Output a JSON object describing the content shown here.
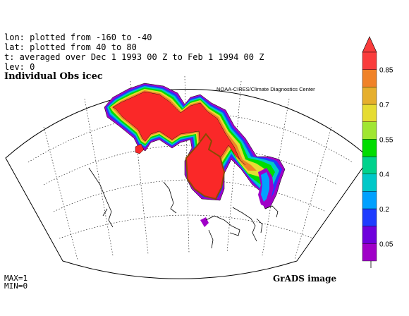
{
  "header": {
    "lon_line": "lon: plotted from -160 to -40",
    "lat_line": "lat: plotted from 40 to 80",
    "time_line": "t: averaged over Dec 1 1993 00 Z to Feb 1 1994 00 Z",
    "lev_line": "lev: 0"
  },
  "title": "Individual Obs icec",
  "credit": "NOAA-CIRES/Climate Diagnostics Center",
  "footer": {
    "max_label": "MAX=1",
    "min_label": "MIN=0",
    "grads_label": "GrADS image"
  },
  "colorbar": {
    "labels": [
      "0.05",
      "0.2",
      "0.4",
      "0.55",
      "0.7",
      "0.85"
    ],
    "colors": [
      "#a000c8",
      "#6e00dc",
      "#1e3cff",
      "#00a0ff",
      "#00c8c8",
      "#00d28c",
      "#00dc00",
      "#a0e632",
      "#e6dc32",
      "#e6af2d",
      "#f08228",
      "#fa3c3c"
    ]
  },
  "map": {
    "projection": "north-polar-lambert-conic",
    "lon_range": [
      -160,
      -40
    ],
    "lat_range": [
      40,
      80
    ]
  }
}
